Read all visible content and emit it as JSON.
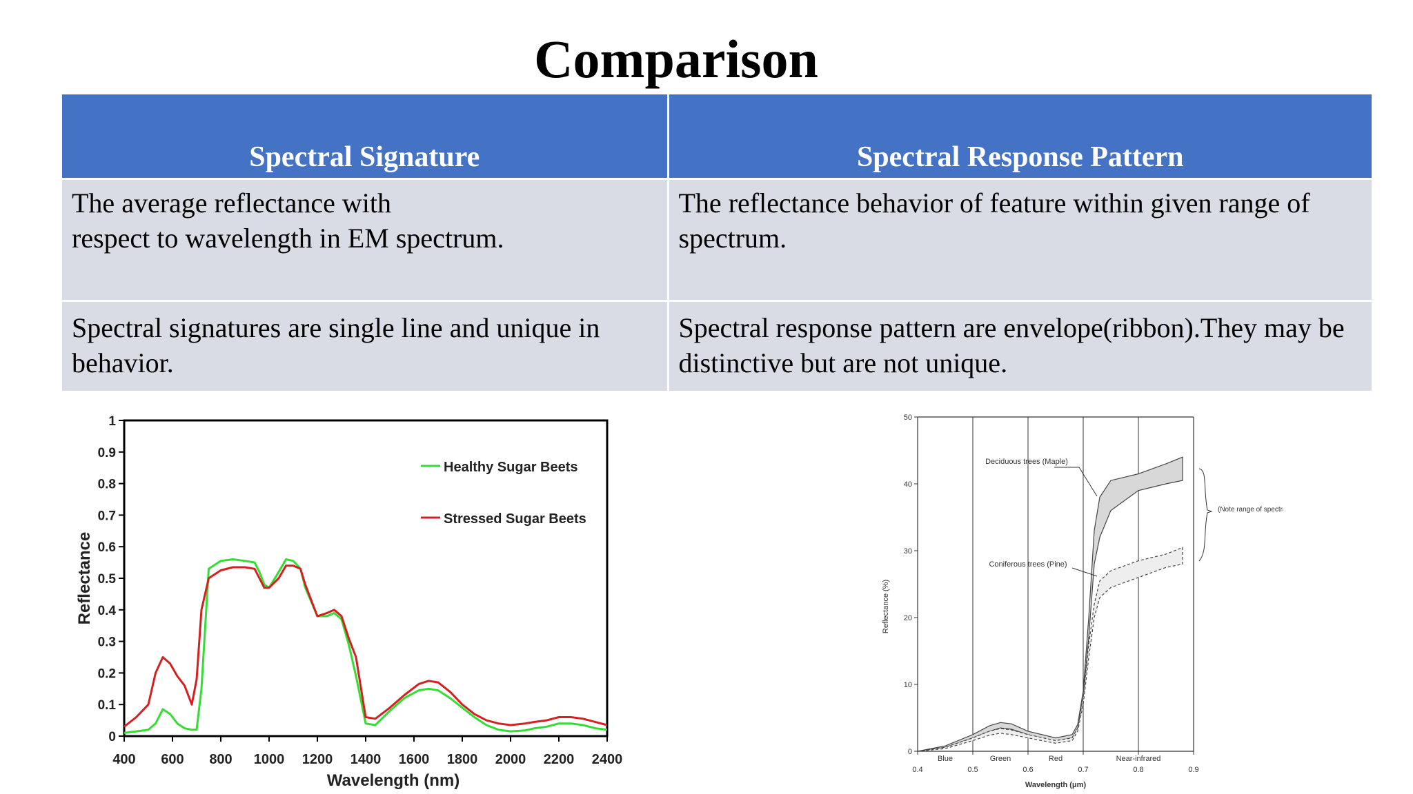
{
  "slide": {
    "title": "Comparison"
  },
  "table": {
    "headers": [
      "Spectral Signature",
      "Spectral Response Pattern"
    ],
    "rows": [
      [
        "The average reflectance with\nrespect to wavelength in EM spectrum.",
        "The reflectance behavior of feature within given range of spectrum."
      ],
      [
        "Spectral signatures are single line and unique in behavior.",
        "Spectral response pattern are envelope(ribbon).They may be distinctive but are not unique."
      ]
    ]
  },
  "colors": {
    "header_bg": "#4472C4",
    "cell_bg": "#D9DCE4",
    "healthy": "#33dd33",
    "stressed": "#d42020"
  },
  "chart_data": [
    {
      "type": "line",
      "xlabel": "Wavelength (nm)",
      "ylabel": "Reflectance",
      "xlim": [
        400,
        2400
      ],
      "ylim": [
        0,
        1
      ],
      "xticks": [
        "400",
        "600",
        "800",
        "1000",
        "1200",
        "1400",
        "1600",
        "1800",
        "2000",
        "2200",
        "2400"
      ],
      "yticks": [
        "0",
        "0.1",
        "0.2",
        "0.3",
        "0.4",
        "0.5",
        "0.6",
        "0.7",
        "0.8",
        "0.9",
        "1"
      ],
      "legend_position": "top-right",
      "series": [
        {
          "name": "Healthy Sugar Beets",
          "color": "#33dd33",
          "x": [
            400,
            450,
            500,
            530,
            560,
            590,
            620,
            650,
            680,
            700,
            720,
            750,
            800,
            850,
            900,
            940,
            960,
            980,
            1000,
            1040,
            1070,
            1100,
            1130,
            1150,
            1200,
            1240,
            1270,
            1300,
            1330,
            1360,
            1400,
            1440,
            1500,
            1560,
            1620,
            1660,
            1700,
            1750,
            1800,
            1850,
            1900,
            1950,
            2000,
            2060,
            2100,
            2150,
            2200,
            2250,
            2300,
            2350,
            2400
          ],
          "y": [
            0.01,
            0.015,
            0.02,
            0.04,
            0.085,
            0.07,
            0.04,
            0.025,
            0.02,
            0.02,
            0.15,
            0.53,
            0.555,
            0.56,
            0.555,
            0.55,
            0.52,
            0.48,
            0.47,
            0.52,
            0.56,
            0.555,
            0.53,
            0.47,
            0.38,
            0.38,
            0.39,
            0.37,
            0.29,
            0.19,
            0.04,
            0.035,
            0.08,
            0.12,
            0.145,
            0.15,
            0.145,
            0.12,
            0.09,
            0.06,
            0.035,
            0.02,
            0.015,
            0.018,
            0.025,
            0.03,
            0.04,
            0.04,
            0.035,
            0.025,
            0.02
          ]
        },
        {
          "name": "Stressed Sugar Beets",
          "color": "#d42020",
          "x": [
            400,
            450,
            500,
            530,
            560,
            590,
            620,
            650,
            680,
            700,
            720,
            750,
            800,
            850,
            900,
            940,
            960,
            980,
            1000,
            1040,
            1070,
            1100,
            1130,
            1150,
            1200,
            1240,
            1270,
            1300,
            1330,
            1360,
            1400,
            1440,
            1500,
            1560,
            1620,
            1660,
            1700,
            1750,
            1800,
            1850,
            1900,
            1950,
            2000,
            2060,
            2100,
            2150,
            2200,
            2250,
            2300,
            2350,
            2400
          ],
          "y": [
            0.03,
            0.06,
            0.1,
            0.2,
            0.25,
            0.23,
            0.19,
            0.16,
            0.1,
            0.18,
            0.4,
            0.5,
            0.525,
            0.535,
            0.535,
            0.53,
            0.5,
            0.47,
            0.47,
            0.5,
            0.54,
            0.54,
            0.53,
            0.48,
            0.38,
            0.39,
            0.4,
            0.38,
            0.31,
            0.25,
            0.06,
            0.055,
            0.09,
            0.13,
            0.165,
            0.175,
            0.17,
            0.14,
            0.1,
            0.07,
            0.05,
            0.04,
            0.035,
            0.04,
            0.045,
            0.05,
            0.06,
            0.06,
            0.055,
            0.045,
            0.035
          ]
        }
      ]
    },
    {
      "type": "line",
      "xlabel": "Wavelength (μm)",
      "ylabel": "Reflectance (%)",
      "xlim": [
        0.4,
        0.9
      ],
      "ylim": [
        0,
        50
      ],
      "xticks": [
        "0.4",
        "0.5",
        "0.6",
        "0.7",
        "0.8",
        "0.9"
      ],
      "yticks": [
        "0",
        "10",
        "20",
        "30",
        "40",
        "50"
      ],
      "vlines": [
        0.5,
        0.6,
        0.7,
        0.8
      ],
      "band_labels": [
        {
          "text": "Blue",
          "x": 0.45
        },
        {
          "text": "Green",
          "x": 0.55
        },
        {
          "text": "Red",
          "x": 0.65
        },
        {
          "text": "Near-infrared",
          "x": 0.8
        }
      ],
      "annotations": [
        {
          "text": "Deciduous trees (Maple)"
        },
        {
          "text": "Coniferous trees (Pine)"
        },
        {
          "text": "(Note range of spectral values)"
        }
      ],
      "series": [
        {
          "name": "Deciduous trees (Maple)",
          "x": [
            0.4,
            0.45,
            0.5,
            0.53,
            0.55,
            0.57,
            0.6,
            0.65,
            0.68,
            0.69,
            0.7,
            0.71,
            0.72,
            0.73,
            0.75,
            0.8,
            0.85,
            0.88
          ],
          "upper": [
            0,
            0.8,
            2.5,
            3.8,
            4.3,
            4.1,
            3,
            2,
            2.5,
            4,
            9,
            20,
            33,
            38,
            40.5,
            41.5,
            43,
            44
          ],
          "lower": [
            0,
            0.6,
            2,
            3,
            3.5,
            3.3,
            2.5,
            1.5,
            2,
            3.5,
            8,
            17,
            28,
            32,
            36,
            39,
            40,
            40.5
          ]
        },
        {
          "name": "Coniferous trees (Pine)",
          "x": [
            0.4,
            0.45,
            0.5,
            0.53,
            0.55,
            0.57,
            0.6,
            0.65,
            0.68,
            0.69,
            0.7,
            0.71,
            0.72,
            0.73,
            0.75,
            0.8,
            0.85,
            0.88
          ],
          "upper": [
            0,
            0.6,
            2,
            3,
            3.4,
            3.2,
            2.5,
            1.6,
            2,
            3.5,
            8,
            16,
            22,
            25.5,
            27,
            28.5,
            29.5,
            30.5
          ],
          "lower": [
            0,
            0.4,
            1.6,
            2.4,
            2.7,
            2.5,
            2,
            1.2,
            1.6,
            3,
            7,
            14,
            20,
            23,
            24.5,
            26,
            27.5,
            28
          ]
        }
      ]
    }
  ]
}
